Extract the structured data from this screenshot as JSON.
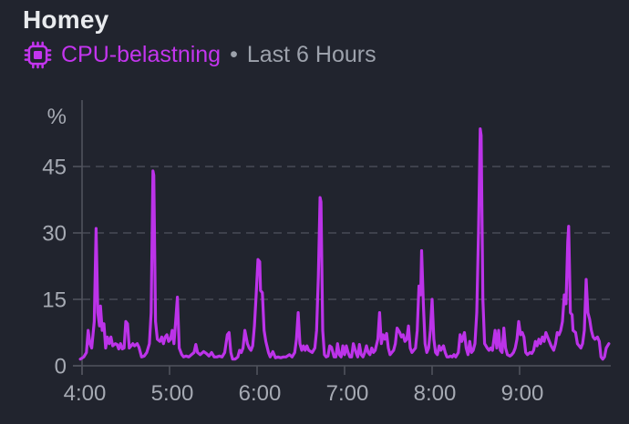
{
  "header": {
    "title": "Homey",
    "metric_label": "CPU-belastning",
    "separator": "•",
    "range_label": "Last 6 Hours",
    "icon": "cpu-chip-icon"
  },
  "colors": {
    "background": "#21242e",
    "accent": "#c335ee",
    "line": "#bc33e9",
    "title_text": "#e9ebee",
    "muted_text": "#9da2ac",
    "axis_text": "#a6aab3",
    "grid_line": "#484b56",
    "axis_line": "#50535d"
  },
  "chart_data": {
    "type": "line",
    "title": "CPU-belastning",
    "subtitle": "Last 6 Hours",
    "unit_label": "%",
    "ylabel": "%",
    "x_tick_labels": [
      "4:00",
      "5:00",
      "6:00",
      "7:00",
      "8:00",
      "9:00"
    ],
    "x_tick_hours": [
      0,
      1,
      2,
      3,
      4,
      5
    ],
    "y_ticks": [
      0,
      15,
      30,
      45
    ],
    "ylim": [
      0,
      60
    ],
    "x_range_hours": [
      -0.02,
      6.04
    ],
    "grid": "horizontal-dashed",
    "legend": "none",
    "series": [
      {
        "name": "CPU-belastning",
        "unit": "%",
        "points": [
          [
            -0.02,
            1.5
          ],
          [
            0.02,
            2
          ],
          [
            0.05,
            3
          ],
          [
            0.07,
            8
          ],
          [
            0.09,
            5
          ],
          [
            0.11,
            4
          ],
          [
            0.14,
            10
          ],
          [
            0.16,
            31
          ],
          [
            0.18,
            12
          ],
          [
            0.2,
            9
          ],
          [
            0.21,
            13.5
          ],
          [
            0.23,
            8
          ],
          [
            0.25,
            9.5
          ],
          [
            0.27,
            4
          ],
          [
            0.29,
            6.5
          ],
          [
            0.31,
            5
          ],
          [
            0.33,
            6.5
          ],
          [
            0.35,
            4.5
          ],
          [
            0.38,
            5
          ],
          [
            0.4,
            4.8
          ],
          [
            0.42,
            3.8
          ],
          [
            0.44,
            5
          ],
          [
            0.46,
            3.8
          ],
          [
            0.48,
            4
          ],
          [
            0.5,
            10
          ],
          [
            0.52,
            9.5
          ],
          [
            0.54,
            4
          ],
          [
            0.56,
            4.5
          ],
          [
            0.58,
            5
          ],
          [
            0.6,
            4.5
          ],
          [
            0.63,
            5
          ],
          [
            0.65,
            4.2
          ],
          [
            0.68,
            2
          ],
          [
            0.71,
            2.2
          ],
          [
            0.74,
            3
          ],
          [
            0.77,
            5
          ],
          [
            0.79,
            12
          ],
          [
            0.81,
            44
          ],
          [
            0.82,
            43
          ],
          [
            0.84,
            10
          ],
          [
            0.86,
            6
          ],
          [
            0.89,
            5.5
          ],
          [
            0.91,
            6.5
          ],
          [
            0.93,
            5
          ],
          [
            0.95,
            6.5
          ],
          [
            0.97,
            7
          ],
          [
            0.99,
            5.5
          ],
          [
            1.01,
            6
          ],
          [
            1.03,
            8
          ],
          [
            1.05,
            5
          ],
          [
            1.07,
            10
          ],
          [
            1.09,
            15.5
          ],
          [
            1.11,
            4
          ],
          [
            1.14,
            2.5
          ],
          [
            1.16,
            2
          ],
          [
            1.19,
            2.2
          ],
          [
            1.22,
            2
          ],
          [
            1.25,
            2.5
          ],
          [
            1.28,
            3
          ],
          [
            1.3,
            4.8
          ],
          [
            1.32,
            3
          ],
          [
            1.35,
            2.5
          ],
          [
            1.39,
            3.2
          ],
          [
            1.42,
            2.8
          ],
          [
            1.45,
            2.2
          ],
          [
            1.48,
            3
          ],
          [
            1.51,
            2
          ],
          [
            1.54,
            2
          ],
          [
            1.57,
            2.2
          ],
          [
            1.6,
            2
          ],
          [
            1.63,
            3
          ],
          [
            1.66,
            7
          ],
          [
            1.68,
            7.5
          ],
          [
            1.7,
            3
          ],
          [
            1.72,
            1.5
          ],
          [
            1.75,
            1.5
          ],
          [
            1.78,
            2
          ],
          [
            1.8,
            3.5
          ],
          [
            1.82,
            3
          ],
          [
            1.84,
            4
          ],
          [
            1.86,
            8
          ],
          [
            1.89,
            5
          ],
          [
            1.91,
            4
          ],
          [
            1.93,
            3.5
          ],
          [
            1.95,
            4.5
          ],
          [
            1.97,
            9
          ],
          [
            1.99,
            16
          ],
          [
            2.01,
            24
          ],
          [
            2.03,
            23.5
          ],
          [
            2.04,
            17
          ],
          [
            2.06,
            16.5
          ],
          [
            2.08,
            8
          ],
          [
            2.1,
            5.5
          ],
          [
            2.13,
            3
          ],
          [
            2.15,
            2
          ],
          [
            2.18,
            3.2
          ],
          [
            2.21,
            1.8
          ],
          [
            2.24,
            2
          ],
          [
            2.27,
            1.8
          ],
          [
            2.3,
            2
          ],
          [
            2.33,
            2
          ],
          [
            2.37,
            2.5
          ],
          [
            2.4,
            2
          ],
          [
            2.43,
            3
          ],
          [
            2.45,
            6
          ],
          [
            2.47,
            12
          ],
          [
            2.49,
            5
          ],
          [
            2.51,
            3.5
          ],
          [
            2.53,
            4.5
          ],
          [
            2.55,
            3.5
          ],
          [
            2.57,
            4.5
          ],
          [
            2.59,
            3.5
          ],
          [
            2.63,
            3
          ],
          [
            2.66,
            4
          ],
          [
            2.68,
            8
          ],
          [
            2.7,
            20
          ],
          [
            2.72,
            38
          ],
          [
            2.73,
            37
          ],
          [
            2.75,
            8
          ],
          [
            2.77,
            2.5
          ],
          [
            2.79,
            2
          ],
          [
            2.81,
            2.2
          ],
          [
            2.83,
            4.5
          ],
          [
            2.85,
            4.2
          ],
          [
            2.88,
            2
          ],
          [
            2.9,
            2
          ],
          [
            2.92,
            5
          ],
          [
            2.94,
            2.5
          ],
          [
            2.96,
            2
          ],
          [
            2.98,
            4.5
          ],
          [
            3.0,
            2.5
          ],
          [
            3.02,
            4.5
          ],
          [
            3.04,
            3
          ],
          [
            3.06,
            2
          ],
          [
            3.08,
            2
          ],
          [
            3.1,
            5
          ],
          [
            3.13,
            3
          ],
          [
            3.15,
            2
          ],
          [
            3.17,
            4.8
          ],
          [
            3.19,
            2.5
          ],
          [
            3.21,
            2
          ],
          [
            3.23,
            3
          ],
          [
            3.25,
            4.5
          ],
          [
            3.27,
            3
          ],
          [
            3.29,
            2.5
          ],
          [
            3.31,
            4
          ],
          [
            3.33,
            3
          ],
          [
            3.35,
            3.5
          ],
          [
            3.38,
            6
          ],
          [
            3.4,
            12
          ],
          [
            3.42,
            5
          ],
          [
            3.44,
            7
          ],
          [
            3.46,
            6
          ],
          [
            3.48,
            7.3
          ],
          [
            3.5,
            4
          ],
          [
            3.52,
            2.5
          ],
          [
            3.54,
            3
          ],
          [
            3.56,
            3.5
          ],
          [
            3.58,
            5
          ],
          [
            3.6,
            8.5
          ],
          [
            3.63,
            7.5
          ],
          [
            3.65,
            6.5
          ],
          [
            3.67,
            7
          ],
          [
            3.69,
            5.5
          ],
          [
            3.71,
            6
          ],
          [
            3.73,
            9
          ],
          [
            3.75,
            4
          ],
          [
            3.77,
            3
          ],
          [
            3.79,
            3.5
          ],
          [
            3.81,
            4
          ],
          [
            3.83,
            8
          ],
          [
            3.85,
            18
          ],
          [
            3.87,
            16
          ],
          [
            3.88,
            26
          ],
          [
            3.9,
            14
          ],
          [
            3.92,
            5
          ],
          [
            3.94,
            3
          ],
          [
            3.96,
            4
          ],
          [
            3.98,
            8
          ],
          [
            4.0,
            15
          ],
          [
            4.02,
            6
          ],
          [
            4.04,
            3
          ],
          [
            4.06,
            2.5
          ],
          [
            4.08,
            4.5
          ],
          [
            4.1,
            3.5
          ],
          [
            4.13,
            4.5
          ],
          [
            4.15,
            3
          ],
          [
            4.17,
            2
          ],
          [
            4.19,
            2
          ],
          [
            4.21,
            2.2
          ],
          [
            4.23,
            2
          ],
          [
            4.25,
            2.5
          ],
          [
            4.27,
            2
          ],
          [
            4.3,
            3
          ],
          [
            4.32,
            7
          ],
          [
            4.34,
            5.5
          ],
          [
            4.37,
            7.5
          ],
          [
            4.39,
            4
          ],
          [
            4.41,
            2.5
          ],
          [
            4.43,
            5.5
          ],
          [
            4.45,
            3
          ],
          [
            4.47,
            3.5
          ],
          [
            4.49,
            5
          ],
          [
            4.51,
            12
          ],
          [
            4.53,
            30
          ],
          [
            4.55,
            53.5
          ],
          [
            4.56,
            52
          ],
          [
            4.58,
            15
          ],
          [
            4.6,
            5
          ],
          [
            4.63,
            4
          ],
          [
            4.65,
            3.5
          ],
          [
            4.67,
            4
          ],
          [
            4.69,
            3.5
          ],
          [
            4.72,
            8
          ],
          [
            4.74,
            4
          ],
          [
            4.76,
            8
          ],
          [
            4.78,
            3.5
          ],
          [
            4.8,
            3
          ],
          [
            4.82,
            8.5
          ],
          [
            4.84,
            4
          ],
          [
            4.86,
            2.5
          ],
          [
            4.89,
            2.2
          ],
          [
            4.91,
            2.5
          ],
          [
            4.93,
            3
          ],
          [
            4.95,
            4
          ],
          [
            4.97,
            6
          ],
          [
            4.99,
            10
          ],
          [
            5.01,
            7
          ],
          [
            5.03,
            7.5
          ],
          [
            5.05,
            6.5
          ],
          [
            5.07,
            3
          ],
          [
            5.09,
            2.5
          ],
          [
            5.12,
            3
          ],
          [
            5.14,
            2.8
          ],
          [
            5.16,
            3.5
          ],
          [
            5.18,
            5.5
          ],
          [
            5.2,
            4.5
          ],
          [
            5.22,
            6
          ],
          [
            5.24,
            5
          ],
          [
            5.26,
            6.5
          ],
          [
            5.28,
            5.5
          ],
          [
            5.3,
            7.5
          ],
          [
            5.32,
            6.5
          ],
          [
            5.34,
            5.5
          ],
          [
            5.36,
            4.5
          ],
          [
            5.39,
            3.5
          ],
          [
            5.41,
            5
          ],
          [
            5.43,
            7.5
          ],
          [
            5.45,
            7
          ],
          [
            5.47,
            8
          ],
          [
            5.49,
            10
          ],
          [
            5.51,
            16
          ],
          [
            5.53,
            14
          ],
          [
            5.55,
            28
          ],
          [
            5.56,
            31.5
          ],
          [
            5.58,
            12
          ],
          [
            5.6,
            11.5
          ],
          [
            5.61,
            8
          ],
          [
            5.64,
            7.5
          ],
          [
            5.66,
            5
          ],
          [
            5.68,
            4.5
          ],
          [
            5.7,
            4
          ],
          [
            5.72,
            5
          ],
          [
            5.74,
            8
          ],
          [
            5.76,
            19.5
          ],
          [
            5.78,
            12
          ],
          [
            5.8,
            10.5
          ],
          [
            5.82,
            8
          ],
          [
            5.84,
            6.5
          ],
          [
            5.86,
            6
          ],
          [
            5.89,
            6.5
          ],
          [
            5.91,
            5.5
          ],
          [
            5.93,
            2
          ],
          [
            5.95,
            1.5
          ],
          [
            5.97,
            2
          ],
          [
            5.99,
            4
          ],
          [
            6.02,
            5
          ]
        ]
      }
    ]
  }
}
